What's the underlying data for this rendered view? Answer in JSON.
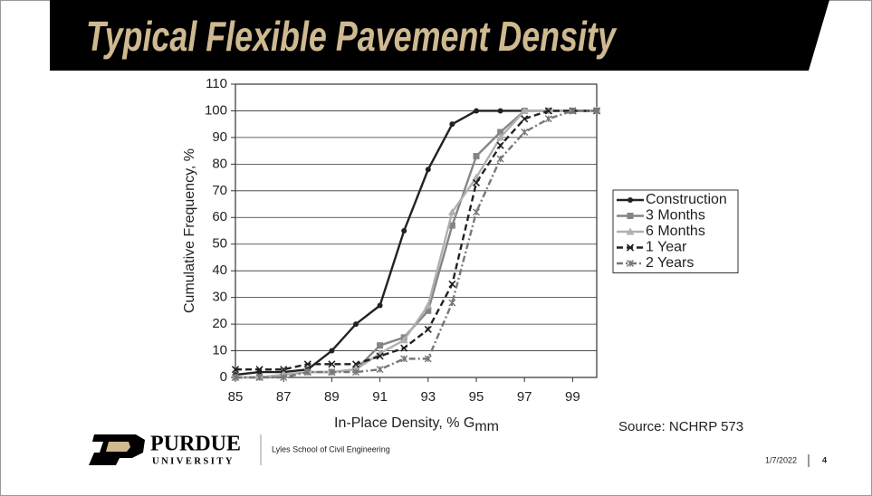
{
  "header": {
    "title": "Typical Flexible Pavement Density"
  },
  "chart_data": {
    "type": "line",
    "ylabel": "Cumulative Frequency, %",
    "xlabel": "In-Place Density, % G",
    "xlabel_subscript": "mm",
    "x": [
      85,
      86,
      87,
      88,
      89,
      90,
      91,
      92,
      93,
      94,
      95,
      96,
      97,
      98,
      99,
      100
    ],
    "xlim": [
      85,
      100
    ],
    "xticks": [
      85,
      87,
      89,
      91,
      93,
      95,
      97,
      99
    ],
    "ylim": [
      0,
      110
    ],
    "yticks": [
      0,
      10,
      20,
      30,
      40,
      50,
      60,
      70,
      80,
      90,
      100,
      110
    ],
    "grid": true,
    "legend": "right",
    "series": [
      {
        "name": "Construction",
        "color": "#222222",
        "marker": "circle",
        "dash": "solid",
        "values": [
          1,
          2,
          2,
          3,
          10,
          20,
          27,
          55,
          78,
          95,
          100,
          100,
          100,
          100,
          100,
          100
        ]
      },
      {
        "name": "3 Months",
        "color": "#858585",
        "marker": "square",
        "dash": "solid",
        "values": [
          0,
          0,
          1,
          2,
          2,
          3,
          12,
          15,
          25,
          57,
          83,
          92,
          100,
          100,
          100,
          100
        ]
      },
      {
        "name": "6 Months",
        "color": "#b0b0b0",
        "marker": "triangle",
        "dash": "solid",
        "values": [
          0,
          0,
          1,
          2,
          2,
          3,
          9,
          14,
          27,
          62,
          75,
          90,
          100,
          100,
          100,
          100
        ]
      },
      {
        "name": "1 Year",
        "color": "#222222",
        "marker": "x",
        "dash": "dash",
        "values": [
          3,
          3,
          3,
          5,
          5,
          5,
          8,
          11,
          18,
          35,
          73,
          87,
          97,
          100,
          100,
          100
        ]
      },
      {
        "name": "2 Years",
        "color": "#777777",
        "marker": "star",
        "dash": "dashdot",
        "values": [
          0,
          0,
          0,
          2,
          2,
          2,
          3,
          7,
          7,
          28,
          62,
          82,
          92,
          97,
          100,
          100
        ]
      }
    ]
  },
  "source": "Source: NCHRP 573",
  "footer": {
    "logo_name": "PURDUE",
    "logo_sub": "UNIVERSITY",
    "school": "Lyles School of Civil Engineering",
    "date": "1/7/2022",
    "page": "4"
  }
}
